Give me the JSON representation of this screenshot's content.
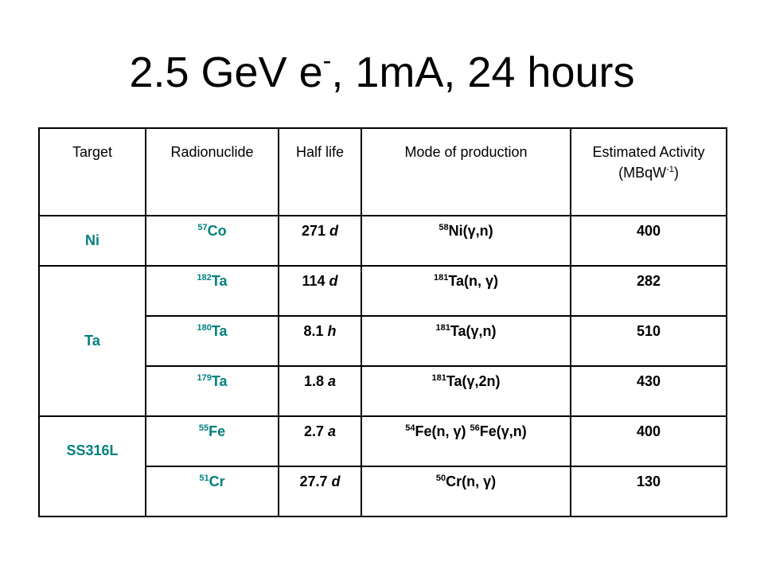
{
  "title": {
    "prefix": "2.5 GeV e",
    "superscript": "-",
    "suffix": ", 1mA, 24 hours"
  },
  "table": {
    "headers": {
      "target": "Target",
      "radionuclide": "Radionuclide",
      "half_life": "Half life",
      "mode": "Mode of production",
      "activity_line1": "Estimated Activity",
      "activity_line2_pre": "(MBqW",
      "activity_line2_sup": "-1",
      "activity_line2_post": ")"
    },
    "groups": [
      {
        "target": "Ni",
        "rows": [
          {
            "nuclide_mass": "57",
            "nuclide_symbol": "Co",
            "half_life_value": "271 ",
            "half_life_unit": "d",
            "mode_mass": "58",
            "mode_text": "Ni(γ,n)",
            "activity": "400"
          }
        ]
      },
      {
        "target": "Ta",
        "rows": [
          {
            "nuclide_mass": "182",
            "nuclide_symbol": "Ta",
            "half_life_value": "114 ",
            "half_life_unit": "d",
            "mode_mass": "181",
            "mode_text": "Ta(n, γ)",
            "activity": "282"
          },
          {
            "nuclide_mass": "180",
            "nuclide_symbol": "Ta",
            "half_life_value": "8.1 ",
            "half_life_unit": "h",
            "mode_mass": "181",
            "mode_text": "Ta(γ,n)",
            "activity": "510"
          },
          {
            "nuclide_mass": "179",
            "nuclide_symbol": "Ta",
            "half_life_value": "1.8 ",
            "half_life_unit": "a",
            "mode_mass": "181",
            "mode_text": "Ta(γ,2n)",
            "activity": "430"
          }
        ]
      },
      {
        "target": "SS316L",
        "rows": [
          {
            "nuclide_mass": "55",
            "nuclide_symbol": "Fe",
            "half_life_value": "2.7 ",
            "half_life_unit": "a",
            "mode_mass": "54",
            "mode_text": "Fe(n, γ) ",
            "mode_mass2": "56",
            "mode_text2": "Fe(γ,n)",
            "activity": "400"
          },
          {
            "nuclide_mass": "51",
            "nuclide_symbol": "Cr",
            "half_life_value": "27.7 ",
            "half_life_unit": "d",
            "mode_mass": "50",
            "mode_text": "Cr(n, γ)",
            "activity": "130"
          }
        ]
      }
    ]
  }
}
